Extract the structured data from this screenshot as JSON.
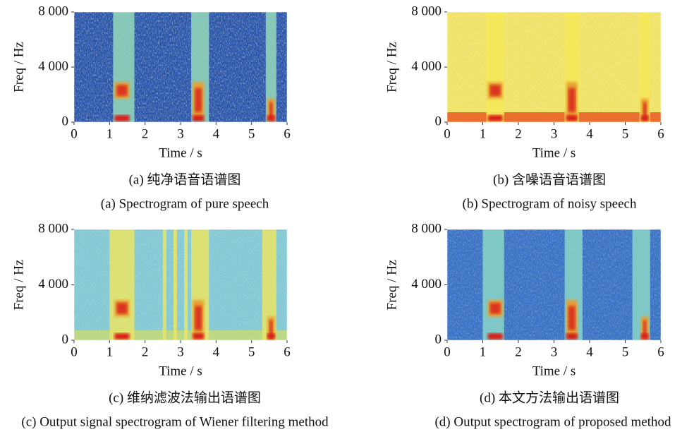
{
  "chart_data": [
    {
      "type": "spectrogram",
      "xlabel": "Time / s",
      "ylabel": "Freq / Hz",
      "xlim": [
        0,
        6
      ],
      "ylim": [
        0,
        8000
      ],
      "xticks": [
        0,
        1,
        2,
        3,
        4,
        5,
        6
      ],
      "yticks": [
        0,
        {
          "value": 4000,
          "label": "4 000"
        },
        {
          "value": 8000,
          "label": "8 000"
        }
      ],
      "caption_zh": "(a) 纯净语音语谱图",
      "caption_en": "(a) Spectrogram of pure speech"
    },
    {
      "type": "spectrogram",
      "xlabel": "Time / s",
      "ylabel": "Freq / Hz",
      "xlim": [
        0,
        6
      ],
      "ylim": [
        0,
        8000
      ],
      "xticks": [
        0,
        1,
        2,
        3,
        4,
        5,
        6
      ],
      "yticks": [
        0,
        {
          "value": 4000,
          "label": "4 000"
        },
        {
          "value": 8000,
          "label": "8 000"
        }
      ],
      "caption_zh": "(b) 含噪语音语谱图",
      "caption_en": "(b) Spectrogram of noisy speech"
    },
    {
      "type": "spectrogram",
      "xlabel": "Time / s",
      "ylabel": "Freq / Hz",
      "xlim": [
        0,
        6
      ],
      "ylim": [
        0,
        8000
      ],
      "xticks": [
        0,
        1,
        2,
        3,
        4,
        5,
        6
      ],
      "yticks": [
        0,
        {
          "value": 4000,
          "label": "4 000"
        },
        {
          "value": 8000,
          "label": "8 000"
        }
      ],
      "caption_zh": "(c) 维纳滤波法输出语谱图",
      "caption_en": "(c) Output signal spectrogram of Wiener filtering method"
    },
    {
      "type": "spectrogram",
      "xlabel": "Time / s",
      "ylabel": "Freq / Hz",
      "xlim": [
        0,
        6
      ],
      "ylim": [
        0,
        8000
      ],
      "xticks": [
        0,
        1,
        2,
        3,
        4,
        5,
        6
      ],
      "yticks": [
        0,
        {
          "value": 4000,
          "label": "4 000"
        },
        {
          "value": 8000,
          "label": "8 000"
        }
      ],
      "caption_zh": "(d) 本文方法输出语谱图",
      "caption_en": "(d) Output  spectrogram of proposed method"
    }
  ]
}
